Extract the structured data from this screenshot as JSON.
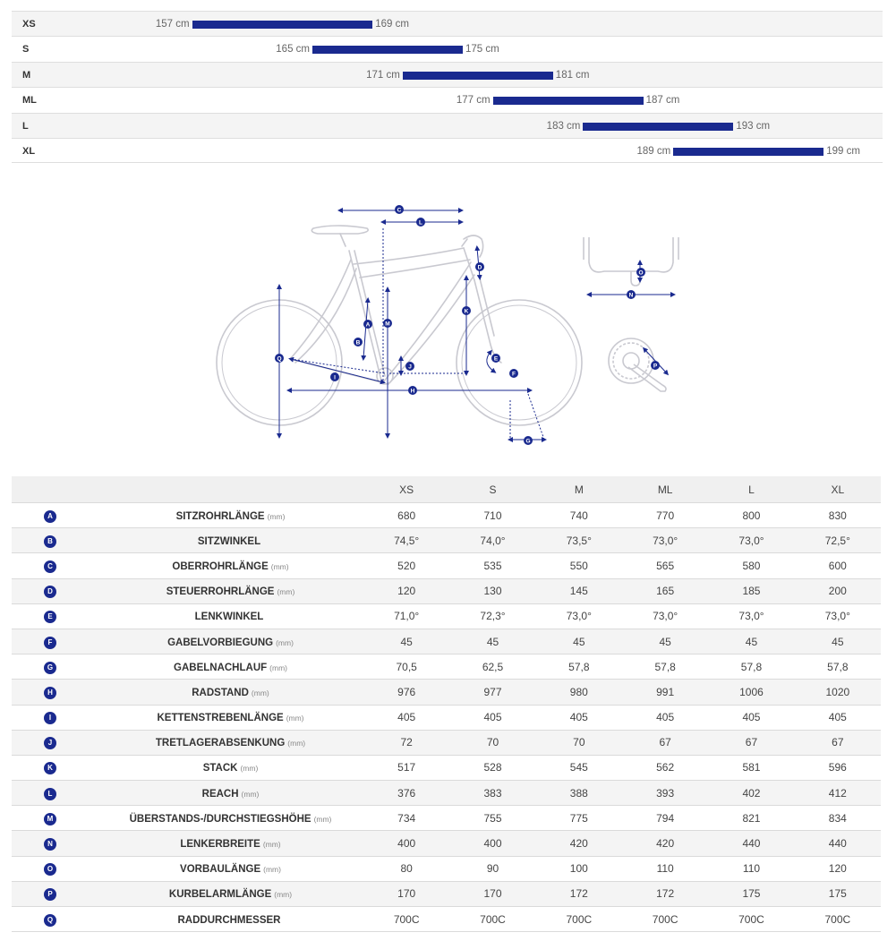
{
  "size_chart": {
    "rows": [
      {
        "size": "XS",
        "min": "157 cm",
        "max": "169 cm",
        "min_cm": 157,
        "max_cm": 169
      },
      {
        "size": "S",
        "min": "165 cm",
        "max": "175 cm",
        "min_cm": 165,
        "max_cm": 175
      },
      {
        "size": "M",
        "min": "171 cm",
        "max": "181 cm",
        "min_cm": 171,
        "max_cm": 181
      },
      {
        "size": "ML",
        "min": "177 cm",
        "max": "187 cm",
        "min_cm": 177,
        "max_cm": 187
      },
      {
        "size": "L",
        "min": "183 cm",
        "max": "193 cm",
        "min_cm": 183,
        "max_cm": 193
      },
      {
        "size": "XL",
        "min": "189 cm",
        "max": "199 cm",
        "min_cm": 189,
        "max_cm": 199
      }
    ]
  },
  "diagram": {
    "labels": [
      "A",
      "B",
      "C",
      "D",
      "E",
      "F",
      "G",
      "H",
      "I",
      "J",
      "K",
      "L",
      "M",
      "N",
      "O",
      "P",
      "Q"
    ]
  },
  "geometry": {
    "sizes": [
      "XS",
      "S",
      "M",
      "ML",
      "L",
      "XL"
    ],
    "rows": [
      {
        "letter": "A",
        "name": "SITZROHRLÄNGE",
        "unit": "(mm)",
        "values": [
          "680",
          "710",
          "740",
          "770",
          "800",
          "830"
        ]
      },
      {
        "letter": "B",
        "name": "SITZWINKEL",
        "unit": "",
        "values": [
          "74,5°",
          "74,0°",
          "73,5°",
          "73,0°",
          "73,0°",
          "72,5°"
        ]
      },
      {
        "letter": "C",
        "name": "OBERROHRLÄNGE",
        "unit": "(mm)",
        "values": [
          "520",
          "535",
          "550",
          "565",
          "580",
          "600"
        ]
      },
      {
        "letter": "D",
        "name": "STEUERROHRLÄNGE",
        "unit": "(mm)",
        "values": [
          "120",
          "130",
          "145",
          "165",
          "185",
          "200"
        ]
      },
      {
        "letter": "E",
        "name": "LENKWINKEL",
        "unit": "",
        "values": [
          "71,0°",
          "72,3°",
          "73,0°",
          "73,0°",
          "73,0°",
          "73,0°"
        ]
      },
      {
        "letter": "F",
        "name": "GABELVORBIEGUNG",
        "unit": "(mm)",
        "values": [
          "45",
          "45",
          "45",
          "45",
          "45",
          "45"
        ]
      },
      {
        "letter": "G",
        "name": "GABELNACHLAUF",
        "unit": "(mm)",
        "values": [
          "70,5",
          "62,5",
          "57,8",
          "57,8",
          "57,8",
          "57,8"
        ]
      },
      {
        "letter": "H",
        "name": "RADSTAND",
        "unit": "(mm)",
        "values": [
          "976",
          "977",
          "980",
          "991",
          "1006",
          "1020"
        ]
      },
      {
        "letter": "I",
        "name": "KETTENSTREBENLÄNGE",
        "unit": "(mm)",
        "values": [
          "405",
          "405",
          "405",
          "405",
          "405",
          "405"
        ]
      },
      {
        "letter": "J",
        "name": "TRETLAGERABSENKUNG",
        "unit": "(mm)",
        "values": [
          "72",
          "70",
          "70",
          "67",
          "67",
          "67"
        ]
      },
      {
        "letter": "K",
        "name": "STACK",
        "unit": "(mm)",
        "values": [
          "517",
          "528",
          "545",
          "562",
          "581",
          "596"
        ]
      },
      {
        "letter": "L",
        "name": "REACH",
        "unit": "(mm)",
        "values": [
          "376",
          "383",
          "388",
          "393",
          "402",
          "412"
        ]
      },
      {
        "letter": "M",
        "name": "ÜBERSTANDS-/DURCHSTIEGSHÖHE",
        "unit": "(mm)",
        "values": [
          "734",
          "755",
          "775",
          "794",
          "821",
          "834"
        ]
      },
      {
        "letter": "N",
        "name": "LENKERBREITE",
        "unit": "(mm)",
        "values": [
          "400",
          "400",
          "420",
          "420",
          "440",
          "440"
        ]
      },
      {
        "letter": "O",
        "name": "VORBAULÄNGE",
        "unit": "(mm)",
        "values": [
          "80",
          "90",
          "100",
          "110",
          "110",
          "120"
        ]
      },
      {
        "letter": "P",
        "name": "KURBELARMLÄNGE",
        "unit": "(mm)",
        "values": [
          "170",
          "170",
          "172",
          "172",
          "175",
          "175"
        ]
      },
      {
        "letter": "Q",
        "name": "RADDURCHMESSER",
        "unit": "",
        "values": [
          "700C",
          "700C",
          "700C",
          "700C",
          "700C",
          "700C"
        ]
      }
    ]
  },
  "colors": {
    "accent": "#1a2a8f",
    "frame": "#c9c9d0",
    "row_alt": "#f4f4f4"
  }
}
